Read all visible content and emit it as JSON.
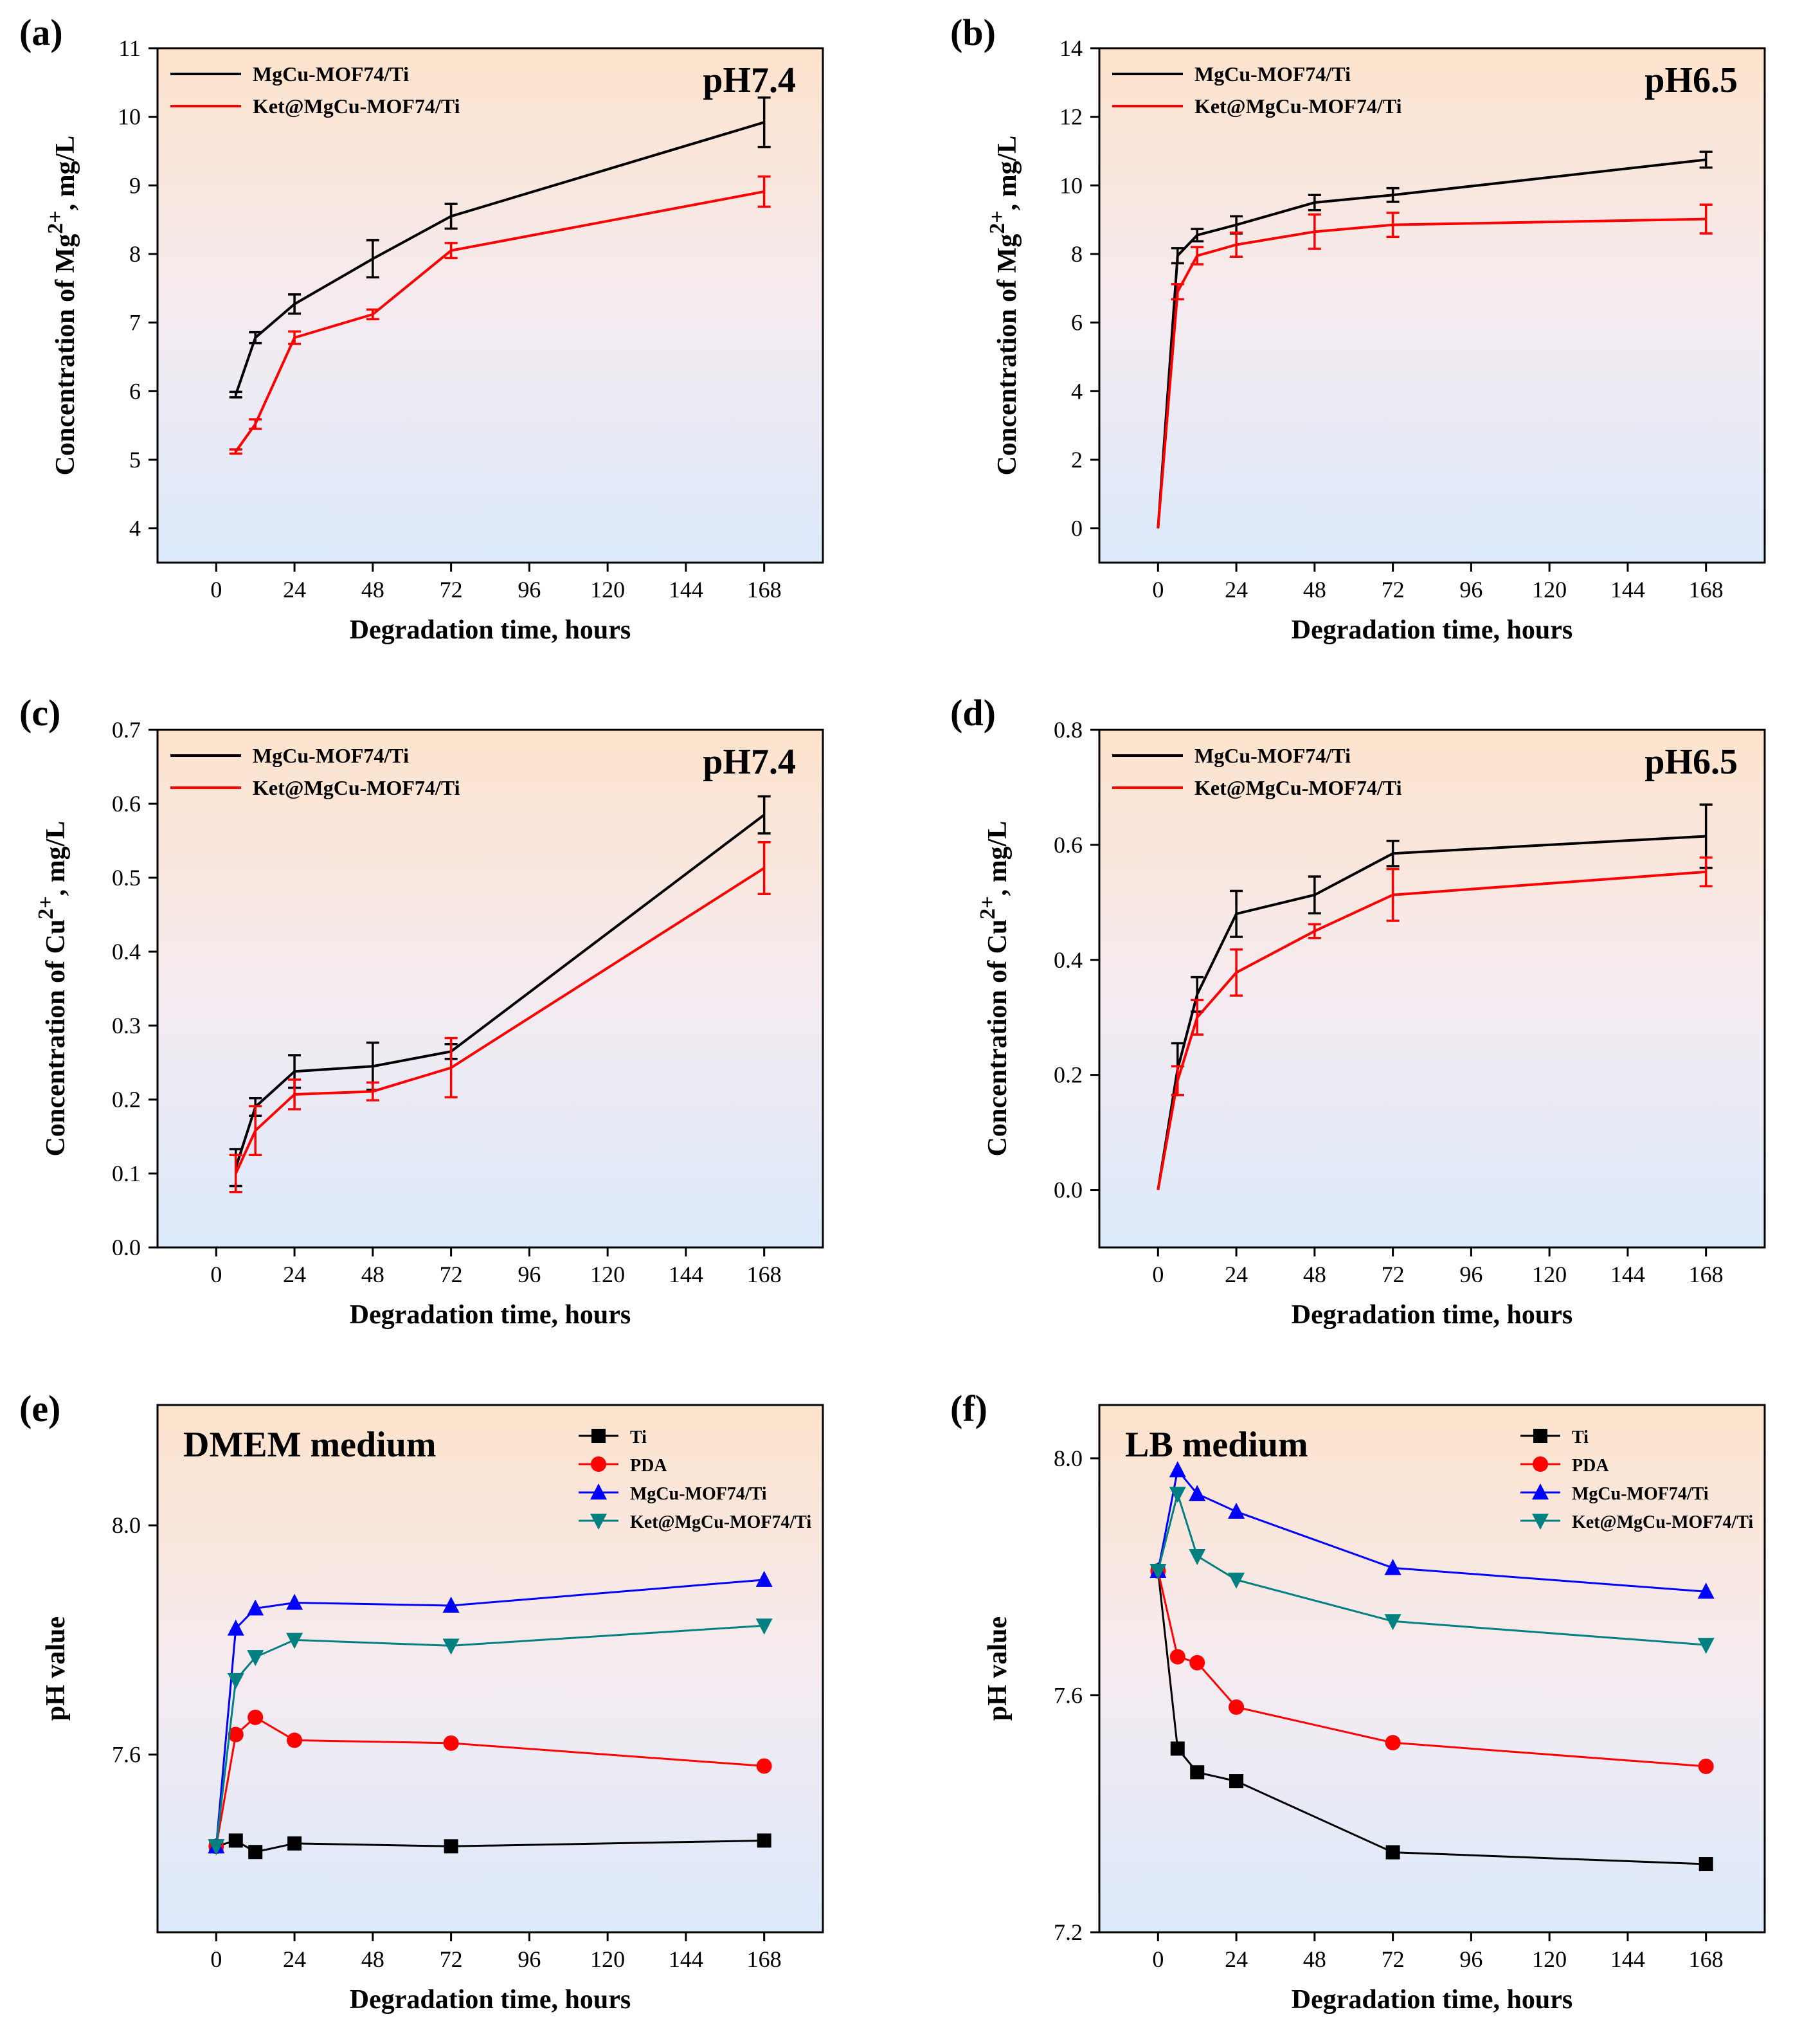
{
  "figure": {
    "panel_count": 6
  },
  "chart_data": [
    {
      "panel": "(a)",
      "type": "line",
      "note": "pH7.4",
      "xlabel": "Degradation time, hours",
      "ylabel": "Concentration of Mg²⁺, mg/L",
      "ylabel_parts": [
        "Concentration of Mg",
        "2+",
        ", mg/L"
      ],
      "xlim": [
        -18,
        186
      ],
      "ylim": [
        3.5,
        11
      ],
      "xticks": [
        0,
        24,
        48,
        72,
        96,
        120,
        144,
        168
      ],
      "yticks": [
        4,
        5,
        6,
        7,
        8,
        9,
        10,
        11
      ],
      "ytick_labels": [
        "4",
        "5",
        "6",
        "7",
        "8",
        "9",
        "10",
        "11"
      ],
      "error_bars": true,
      "legend": "top-left",
      "series": [
        {
          "name": "MgCu-MOF74/Ti",
          "color": "#000000",
          "marker": "none",
          "x": [
            6,
            12,
            24,
            48,
            72,
            168
          ],
          "y": [
            5.95,
            6.78,
            7.27,
            7.93,
            8.55,
            9.92
          ],
          "err": [
            0.04,
            0.08,
            0.14,
            0.27,
            0.18,
            0.36
          ]
        },
        {
          "name": "Ket@MgCu-MOF74/Ti",
          "color": "#ff0000",
          "marker": "none",
          "x": [
            6,
            12,
            24,
            48,
            72,
            168
          ],
          "y": [
            5.12,
            5.52,
            6.78,
            7.12,
            8.05,
            8.91
          ],
          "err": [
            0.03,
            0.07,
            0.09,
            0.07,
            0.11,
            0.22
          ]
        }
      ]
    },
    {
      "panel": "(b)",
      "type": "line",
      "note": "pH6.5",
      "xlabel": "Degradation time, hours",
      "ylabel": "Concentration of Mg²⁺, mg/L",
      "ylabel_parts": [
        "Concentration of Mg",
        "2+",
        ", mg/L"
      ],
      "xlim": [
        -18,
        186
      ],
      "ylim": [
        -1,
        14
      ],
      "xticks": [
        0,
        24,
        48,
        72,
        96,
        120,
        144,
        168
      ],
      "yticks": [
        0,
        2,
        4,
        6,
        8,
        10,
        12,
        14
      ],
      "ytick_labels": [
        "0",
        "2",
        "4",
        "6",
        "8",
        "10",
        "12",
        "14"
      ],
      "error_bars": true,
      "legend": "top-left",
      "series": [
        {
          "name": "MgCu-MOF74/Ti",
          "color": "#000000",
          "marker": "none",
          "x": [
            0,
            6,
            12,
            24,
            48,
            72,
            168
          ],
          "y": [
            0,
            7.95,
            8.55,
            8.85,
            9.5,
            9.72,
            10.75
          ],
          "err": [
            0,
            0.22,
            0.18,
            0.25,
            0.22,
            0.2,
            0.23
          ]
        },
        {
          "name": "Ket@MgCu-MOF74/Ti",
          "color": "#ff0000",
          "marker": "none",
          "x": [
            0,
            6,
            12,
            24,
            48,
            72,
            168
          ],
          "y": [
            0,
            6.9,
            7.95,
            8.27,
            8.65,
            8.85,
            9.02
          ],
          "err": [
            0,
            0.22,
            0.25,
            0.35,
            0.5,
            0.35,
            0.42
          ]
        }
      ]
    },
    {
      "panel": "(c)",
      "type": "line",
      "note": "pH7.4",
      "xlabel": "Degradation time, hours",
      "ylabel": "Concentration of Cu²⁺, mg/L",
      "ylabel_parts": [
        "Concentration of Cu",
        "2+",
        ", mg/L"
      ],
      "xlim": [
        -18,
        186
      ],
      "ylim": [
        0,
        0.7
      ],
      "xticks": [
        0,
        24,
        48,
        72,
        96,
        120,
        144,
        168
      ],
      "yticks": [
        0,
        0.1,
        0.2,
        0.3,
        0.4,
        0.5,
        0.6,
        0.7
      ],
      "ytick_labels": [
        "0.0",
        "0.1",
        "0.2",
        "0.3",
        "0.4",
        "0.5",
        "0.6",
        "0.7"
      ],
      "error_bars": true,
      "legend": "top-left",
      "series": [
        {
          "name": "MgCu-MOF74/Ti",
          "color": "#000000",
          "marker": "none",
          "x": [
            6,
            12,
            24,
            48,
            72,
            168
          ],
          "y": [
            0.108,
            0.19,
            0.238,
            0.245,
            0.265,
            0.585
          ],
          "err": [
            0.025,
            0.012,
            0.022,
            0.032,
            0.01,
            0.025
          ]
        },
        {
          "name": "Ket@MgCu-MOF74/Ti",
          "color": "#ff0000",
          "marker": "none",
          "x": [
            6,
            12,
            24,
            48,
            72,
            168
          ],
          "y": [
            0.1,
            0.158,
            0.207,
            0.211,
            0.243,
            0.513
          ],
          "err": [
            0.025,
            0.033,
            0.02,
            0.012,
            0.04,
            0.035
          ]
        }
      ]
    },
    {
      "panel": "(d)",
      "type": "line",
      "note": "pH6.5",
      "xlabel": "Degradation time, hours",
      "ylabel": "Concentration of Cu²⁺, mg/L",
      "ylabel_parts": [
        "Concentration of Cu",
        "2+",
        ", mg/L"
      ],
      "xlim": [
        -18,
        186
      ],
      "ylim": [
        -0.1,
        0.8
      ],
      "xticks": [
        0,
        24,
        48,
        72,
        96,
        120,
        144,
        168
      ],
      "yticks": [
        0,
        0.2,
        0.4,
        0.6,
        0.8
      ],
      "ytick_labels": [
        "0.0",
        "0.2",
        "0.4",
        "0.6",
        "0.8"
      ],
      "error_bars": true,
      "legend": "top-left",
      "series": [
        {
          "name": "MgCu-MOF74/Ti",
          "color": "#000000",
          "marker": "none",
          "x": [
            0,
            6,
            12,
            24,
            48,
            72,
            168
          ],
          "y": [
            0,
            0.21,
            0.34,
            0.48,
            0.513,
            0.585,
            0.615
          ],
          "err": [
            0,
            0.045,
            0.03,
            0.04,
            0.032,
            0.022,
            0.055
          ]
        },
        {
          "name": "Ket@MgCu-MOF74/Ti",
          "color": "#ff0000",
          "marker": "none",
          "x": [
            0,
            6,
            12,
            24,
            48,
            72,
            168
          ],
          "y": [
            0,
            0.19,
            0.3,
            0.378,
            0.45,
            0.513,
            0.553
          ],
          "err": [
            0,
            0.025,
            0.03,
            0.04,
            0.012,
            0.045,
            0.025
          ]
        }
      ]
    },
    {
      "panel": "(e)",
      "type": "line",
      "note": "DMEM medium",
      "xlabel": "Degradation time, hours",
      "ylabel": "pH value",
      "ylabel_parts": [
        "pH value",
        "",
        ""
      ],
      "xlim": [
        -18,
        186
      ],
      "ylim": [
        7.29,
        8.21
      ],
      "xticks": [
        0,
        24,
        48,
        72,
        96,
        120,
        144,
        168
      ],
      "yticks": [
        7.6,
        8.0
      ],
      "ytick_labels": [
        "7.6",
        "8.0"
      ],
      "error_bars": false,
      "legend": "top-right",
      "series": [
        {
          "name": "Ti",
          "color": "#000000",
          "marker": "square",
          "x": [
            0,
            6,
            12,
            24,
            72,
            168
          ],
          "y": [
            7.44,
            7.45,
            7.43,
            7.445,
            7.44,
            7.45
          ]
        },
        {
          "name": "PDA",
          "color": "#ff0000",
          "marker": "circle",
          "x": [
            0,
            6,
            12,
            24,
            72,
            168
          ],
          "y": [
            7.44,
            7.635,
            7.665,
            7.625,
            7.62,
            7.58
          ]
        },
        {
          "name": "MgCu-MOF74/Ti",
          "color": "#0000ff",
          "marker": "triangle-up",
          "x": [
            0,
            6,
            12,
            24,
            72,
            168
          ],
          "y": [
            7.44,
            7.82,
            7.855,
            7.865,
            7.86,
            7.905
          ]
        },
        {
          "name": "Ket@MgCu-MOF74/Ti",
          "color": "#008080",
          "marker": "triangle-down",
          "x": [
            0,
            6,
            12,
            24,
            72,
            168
          ],
          "y": [
            7.44,
            7.73,
            7.77,
            7.8,
            7.79,
            7.825
          ]
        }
      ]
    },
    {
      "panel": "(f)",
      "type": "line",
      "note": "LB medium",
      "xlabel": "Degradation time, hours",
      "ylabel": "pH value",
      "ylabel_parts": [
        "pH value",
        "",
        ""
      ],
      "xlim": [
        -18,
        186
      ],
      "ylim": [
        7.2,
        8.09
      ],
      "xticks": [
        0,
        24,
        48,
        72,
        96,
        120,
        144,
        168
      ],
      "yticks": [
        7.2,
        7.6,
        8.0
      ],
      "ytick_labels": [
        "7.2",
        "7.6",
        "8.0"
      ],
      "error_bars": false,
      "legend": "top-right",
      "series": [
        {
          "name": "Ti",
          "color": "#000000",
          "marker": "square",
          "x": [
            0,
            6,
            12,
            24,
            72,
            168
          ],
          "y": [
            7.81,
            7.51,
            7.47,
            7.455,
            7.335,
            7.315
          ]
        },
        {
          "name": "PDA",
          "color": "#ff0000",
          "marker": "circle",
          "x": [
            0,
            6,
            12,
            24,
            72,
            168
          ],
          "y": [
            7.81,
            7.665,
            7.655,
            7.58,
            7.52,
            7.48
          ]
        },
        {
          "name": "MgCu-MOF74/Ti",
          "color": "#0000ff",
          "marker": "triangle-up",
          "x": [
            0,
            6,
            12,
            24,
            72,
            168
          ],
          "y": [
            7.81,
            7.98,
            7.94,
            7.91,
            7.815,
            7.775
          ]
        },
        {
          "name": "Ket@MgCu-MOF74/Ti",
          "color": "#008080",
          "marker": "triangle-down",
          "x": [
            0,
            6,
            12,
            24,
            72,
            168
          ],
          "y": [
            7.81,
            7.94,
            7.835,
            7.795,
            7.725,
            7.685
          ]
        }
      ]
    }
  ]
}
